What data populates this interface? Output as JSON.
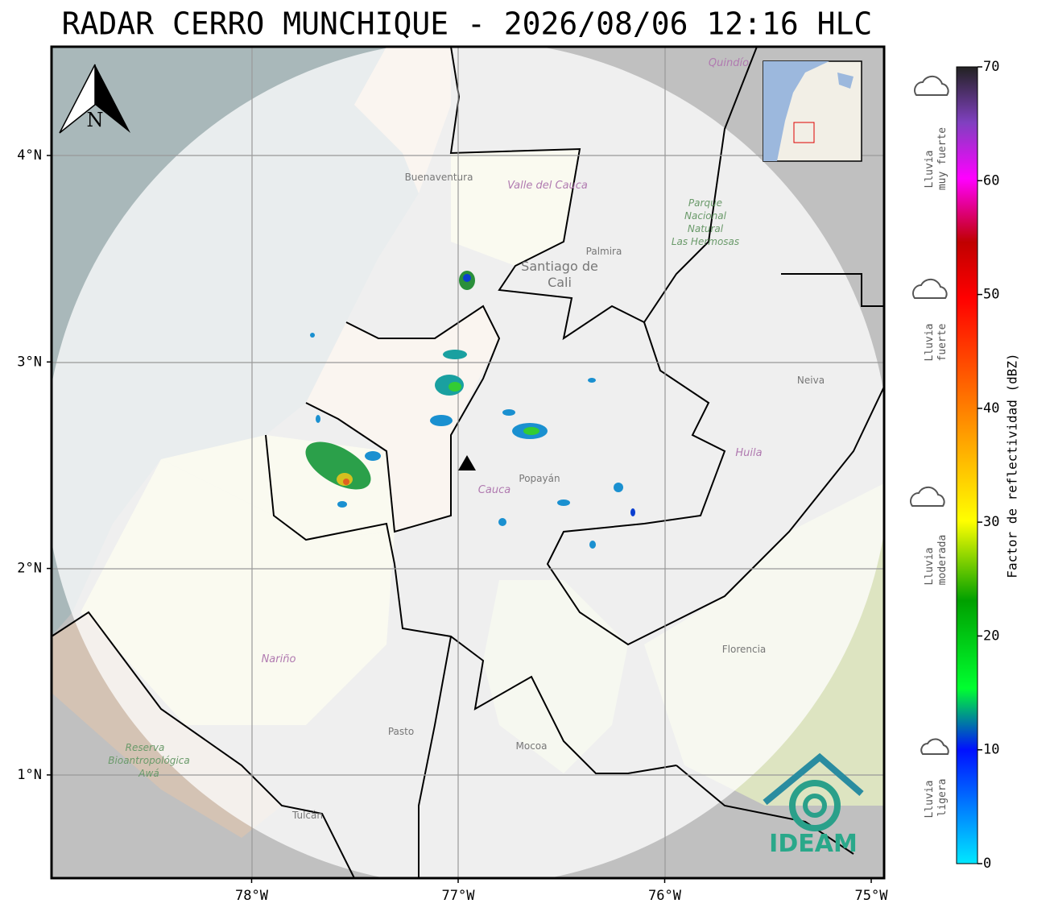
{
  "title": "RADAR CERRO MUNCHIQUE - 2026/08/06 12:16 HLC",
  "map": {
    "lat_ticks": [
      {
        "value": 4,
        "label": "4°N"
      },
      {
        "value": 3,
        "label": "3°N"
      },
      {
        "value": 2,
        "label": "2°N"
      },
      {
        "value": 1,
        "label": "1°N"
      }
    ],
    "lon_ticks": [
      {
        "value": -78,
        "label": "78°W"
      },
      {
        "value": -77,
        "label": "77°W"
      },
      {
        "value": -76,
        "label": "76°W"
      },
      {
        "value": -75,
        "label": "75°W"
      }
    ],
    "north_label": "N",
    "places": [
      [
        "Buenaventura"
      ],
      [
        "Valle del Cauca"
      ],
      [
        "Palmira"
      ],
      [
        "Santiago de",
        "Cali"
      ],
      [
        "Parque",
        "Nacional",
        "Natural",
        "Las Hermosas"
      ],
      [
        "Neiva"
      ],
      [
        "Huila"
      ],
      [
        "Popayán"
      ],
      [
        "Cauca"
      ],
      [
        "Nariño"
      ],
      [
        "Pasto"
      ],
      [
        "Mocoa"
      ],
      [
        "Florencia"
      ],
      [
        "Reserva",
        "Bioantropológica",
        "Awá"
      ],
      [
        "Tulcán"
      ],
      [
        "Quindío"
      ]
    ],
    "logo": "IDEAM"
  },
  "colorbar": {
    "label": "Factor de reflectividad (dBZ)",
    "range": [
      0,
      70
    ],
    "ticks": [
      0,
      10,
      20,
      30,
      40,
      50,
      60,
      70
    ],
    "categories": [
      [
        "Lluvia",
        "muy fuerte"
      ],
      [
        "Lluvia",
        "fuerte"
      ],
      [
        "Lluvia",
        "moderada"
      ],
      [
        "Lluvia",
        "ligera"
      ]
    ]
  }
}
